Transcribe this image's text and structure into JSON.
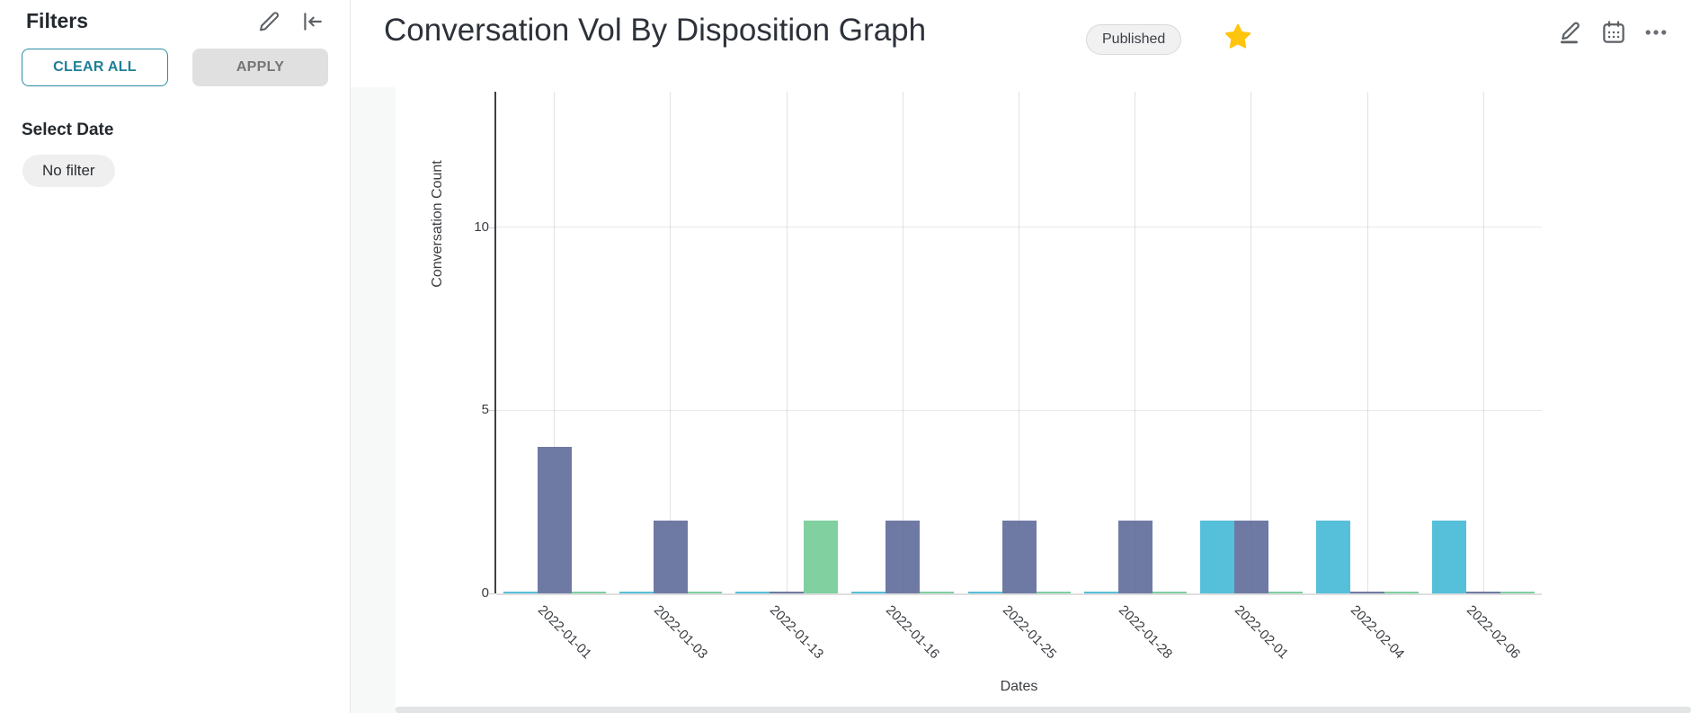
{
  "sidebar": {
    "title": "Filters",
    "buttons": {
      "clear_all": "CLEAR ALL",
      "apply": "APPLY"
    },
    "filter_section": {
      "label": "Select Date",
      "value": "No filter"
    },
    "icons": [
      "edit-pencil",
      "collapse-left"
    ]
  },
  "header": {
    "title": "Conversation Vol By Disposition Graph",
    "status": "Published",
    "favorite_icon": "star-filled",
    "action_icons": [
      "edit-pencil-underline",
      "calendar",
      "more-ellipsis"
    ]
  },
  "chart_data": {
    "type": "bar",
    "title": "Conversation Vol By Disposition Graph",
    "xlabel": "Dates",
    "ylabel": "Conversation Count",
    "ylim": [
      0,
      13.7
    ],
    "yticks": [
      0,
      5,
      10
    ],
    "grid": true,
    "legend": false,
    "categories": [
      "2022-01-01",
      "2022-01-03",
      "2022-01-13",
      "2022-01-16",
      "2022-01-25",
      "2022-01-28",
      "2022-02-01",
      "2022-02-04",
      "2022-02-06"
    ],
    "series": [
      {
        "name": "teal",
        "color": "#56BFD9",
        "values": [
          0,
          0,
          0,
          0,
          0,
          0,
          2,
          2,
          2
        ]
      },
      {
        "name": "purple",
        "color": "#6F7AA4",
        "values": [
          4,
          2,
          0,
          2,
          2,
          2,
          2,
          0,
          0
        ]
      },
      {
        "name": "green",
        "color": "#80D0A0",
        "values": [
          0,
          0,
          2,
          0,
          0,
          0,
          0,
          0,
          0
        ]
      }
    ]
  },
  "colors": {
    "star": "#FFC40C",
    "accent_teal": "#1E7F96",
    "axis_line": "#3D4045",
    "gridline": "#E9E9E9"
  }
}
